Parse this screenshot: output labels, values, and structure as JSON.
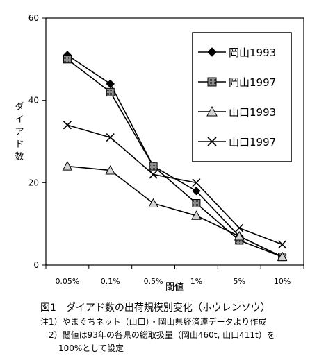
{
  "chart_data": {
    "type": "line",
    "categories": [
      "0.05%",
      "0.1%",
      "0.5%",
      "1%",
      "5%",
      "10%"
    ],
    "ylim": [
      0,
      60
    ],
    "yticks": [
      0,
      20,
      40,
      60
    ],
    "ylabel": "ダイアド数",
    "xlabel": "閾値",
    "title": "",
    "grid": false,
    "legend_position": "top-right",
    "series": [
      {
        "name": "岡山1993",
        "marker": "diamond",
        "values": [
          51,
          44,
          24,
          18,
          7,
          2
        ]
      },
      {
        "name": "岡山1997",
        "marker": "square",
        "values": [
          50,
          42,
          24,
          15,
          6,
          2
        ]
      },
      {
        "name": "山口1993",
        "marker": "triangle",
        "values": [
          24,
          23,
          15,
          12,
          7,
          2
        ]
      },
      {
        "name": "山口1997",
        "marker": "x",
        "values": [
          34,
          31,
          22,
          20,
          9,
          5
        ]
      }
    ]
  },
  "caption": {
    "title": "図1　ダイアド数の出荷規模別変化（ホウレンソウ）",
    "note1": "注1）やまぐちネット（山口）・岡山県経済連データより作成",
    "note2": "2）閾値は93年の各県の総取扱量（岡山460t, 山口411t）を",
    "note3": "100%として設定"
  }
}
